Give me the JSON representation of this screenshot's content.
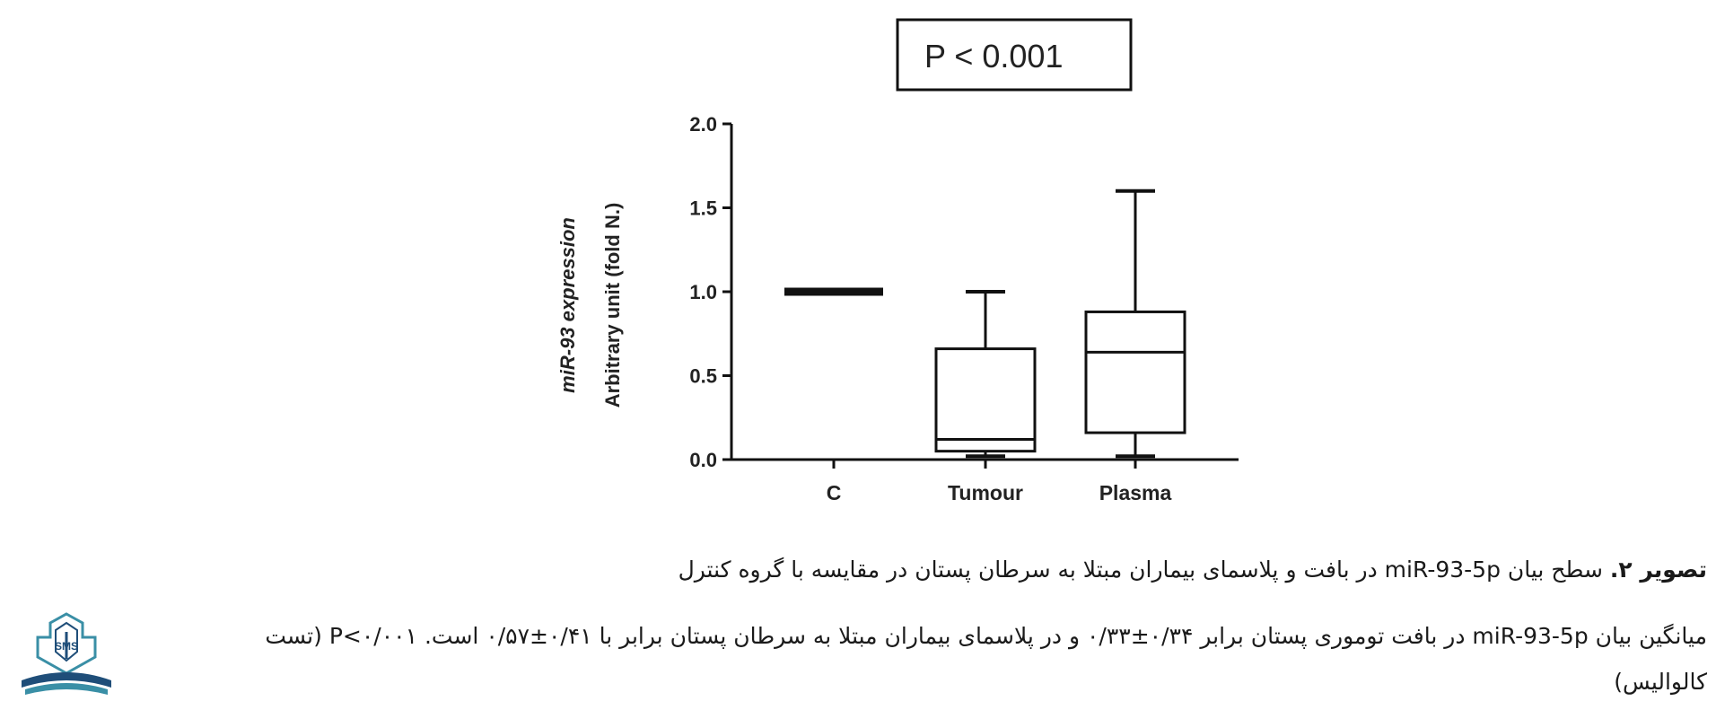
{
  "annotation": {
    "text": "P < 0.001"
  },
  "chart_data": {
    "type": "box",
    "categories": [
      "C",
      "Tumour",
      "Plasma"
    ],
    "ylabel_line1": "miR-93 expression",
    "ylabel_line2": "Arbitrary unit (fold N.)",
    "ylim": [
      0,
      2.0
    ],
    "yticks": [
      "0.0",
      "0.5",
      "1.0",
      "1.5",
      "2.0"
    ],
    "ytick_values": [
      0,
      0.5,
      1.0,
      1.5,
      2.0
    ],
    "boxes": [
      {
        "category": "C",
        "min": 1.0,
        "q1": 1.0,
        "median": 1.0,
        "q3": 1.0,
        "max": 1.0
      },
      {
        "category": "Tumour",
        "min": 0.02,
        "q1": 0.05,
        "median": 0.12,
        "q3": 0.66,
        "max": 1.0
      },
      {
        "category": "Plasma",
        "min": 0.02,
        "q1": 0.16,
        "median": 0.64,
        "q3": 0.88,
        "max": 1.6
      }
    ],
    "grid": false,
    "legend": "none"
  },
  "caption": {
    "label": "تصویر ۲.",
    "prefix": "سطح بیان",
    "gene": "miR-93-5p",
    "suffix": "در بافت و پلاسمای بیماران مبتلا به سرطان پستان در مقایسه با گروه کنترل"
  },
  "body": {
    "prefix": "میانگین بیان",
    "gene": "miR-93-5p",
    "middle": "در بافت توموری پستان برابر ۰/۳۴±۰/۳۳ و در پلاسمای بیماران مبتلا به سرطان پستان برابر با ۰/۴۱±۰/۵۷ است.",
    "pvalue": "P<۰/۰۰۱",
    "suffix": "(تست",
    "line2": "کالوالیس)"
  },
  "logo": {
    "text": "SMS",
    "icon": "journal-logo-icon"
  },
  "colors": {
    "stroke": "#111111",
    "text": "#1a1a1a",
    "logo_blue": "#1f4e79",
    "logo_teal": "#3a8fa6"
  }
}
